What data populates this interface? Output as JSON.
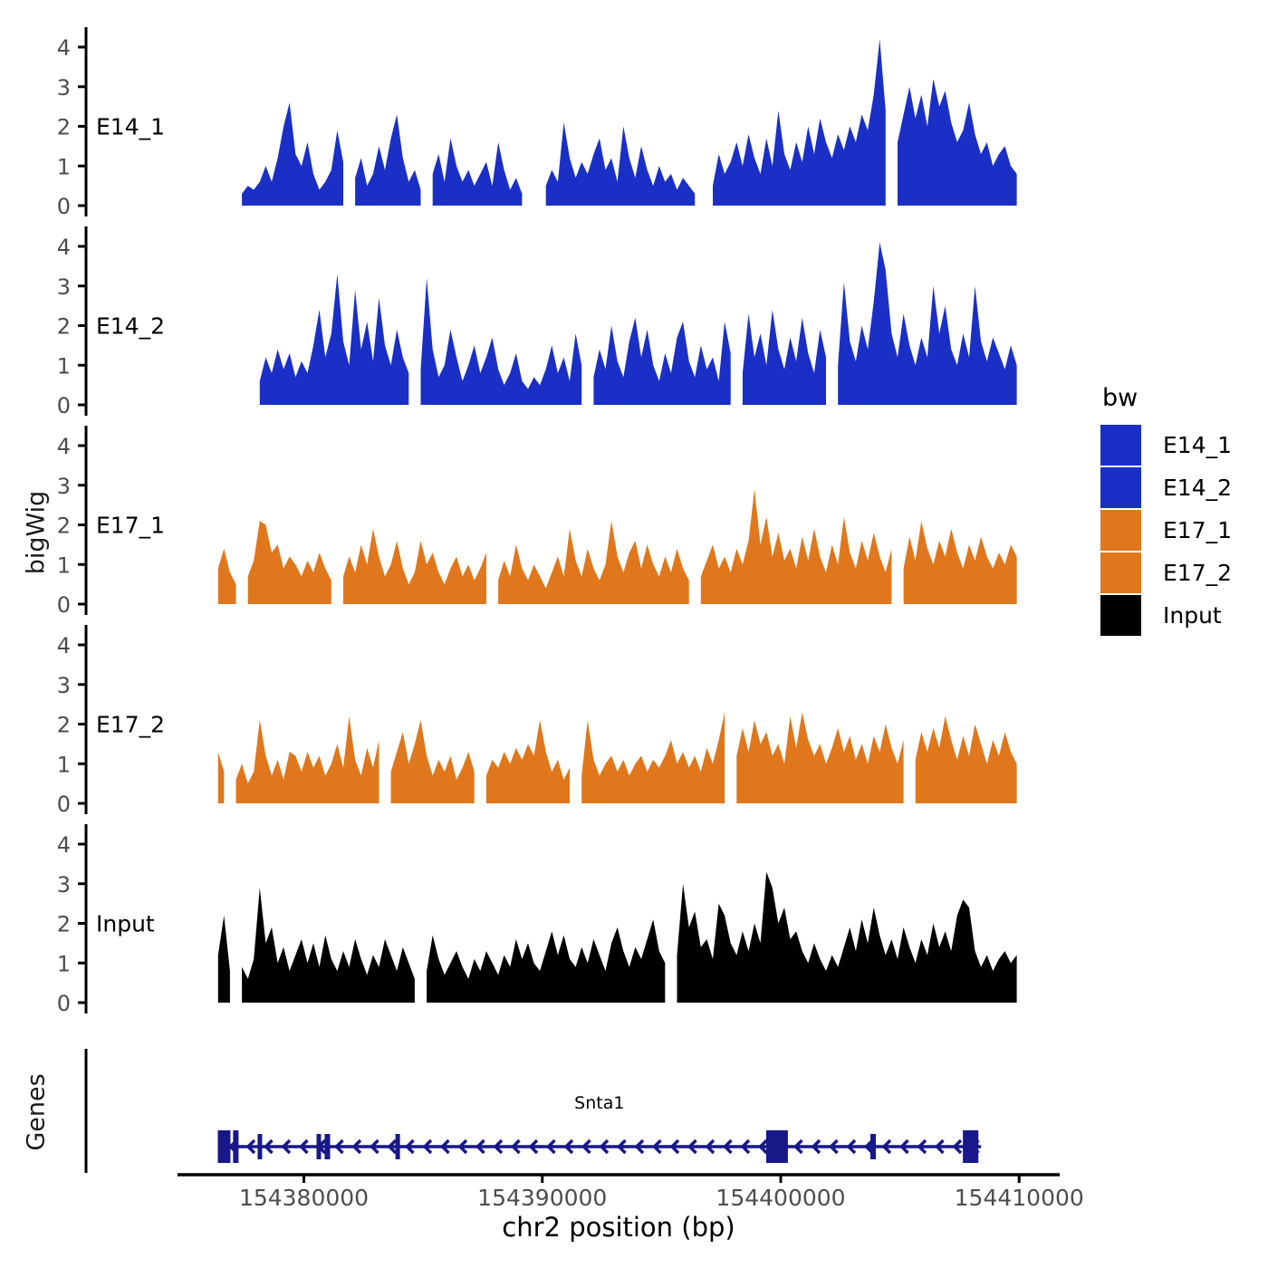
{
  "y_axis_title": "bigWig",
  "genes_axis_title": "Genes",
  "x_axis": {
    "title": "chr2 position (bp)",
    "ticks": [
      154380000,
      154390000,
      154400000,
      154410000
    ],
    "range_bp": [
      154374700,
      154411700
    ]
  },
  "y_axis": {
    "ticks": [
      0,
      1,
      2,
      3,
      4
    ],
    "range": [
      0,
      4.4
    ]
  },
  "legend": {
    "title": "bw",
    "entries": [
      {
        "label": "E14_1",
        "color": "#1A2FC6"
      },
      {
        "label": "E14_2",
        "color": "#1A2FC6"
      },
      {
        "label": "E17_1",
        "color": "#E0771C"
      },
      {
        "label": "E17_2",
        "color": "#E0771C"
      },
      {
        "label": "Input",
        "color": "#000000"
      }
    ]
  },
  "colors": {
    "blue": "#1A2FC6",
    "orange": "#E0771C",
    "black": "#000000",
    "gene_navy": "#181889",
    "tick_label": "#4D4D4D",
    "axis": "#000000"
  },
  "chart_data": {
    "type": "area",
    "title": "",
    "xlabel": "chr2 position (bp)",
    "ylabel": "bigWig",
    "x_start_bp": 154376400,
    "x_step_bp": 250,
    "ylim": [
      0,
      4.4
    ],
    "grid": false,
    "legend_position": "right",
    "series": [
      {
        "name": "E14_1",
        "color": "#1A2FC6",
        "values": [
          0.6,
          null,
          0.7,
          null,
          0.3,
          0.5,
          0.4,
          0.6,
          1.0,
          0.6,
          1.2,
          2.0,
          2.6,
          1.3,
          1.0,
          1.6,
          0.8,
          0.4,
          0.6,
          0.9,
          1.9,
          1.1,
          null,
          0.7,
          1.2,
          0.5,
          0.8,
          1.5,
          0.9,
          1.7,
          2.3,
          1.2,
          0.6,
          0.9,
          0.4,
          null,
          0.8,
          1.3,
          0.6,
          1.7,
          1.0,
          0.6,
          0.9,
          0.5,
          0.8,
          1.1,
          0.5,
          1.6,
          0.9,
          0.4,
          0.7,
          0.3,
          null,
          null,
          null,
          0.5,
          0.9,
          0.6,
          2.1,
          1.2,
          0.7,
          1.1,
          0.8,
          1.3,
          1.7,
          0.9,
          1.2,
          0.6,
          2.0,
          1.2,
          0.7,
          1.5,
          0.9,
          0.5,
          1.0,
          0.6,
          0.8,
          0.4,
          0.7,
          0.5,
          0.3,
          null,
          null,
          0.5,
          1.3,
          0.8,
          1.1,
          1.6,
          1.0,
          1.8,
          1.2,
          0.8,
          1.7,
          1.0,
          2.4,
          1.3,
          0.9,
          1.6,
          1.1,
          2.0,
          1.3,
          2.2,
          1.6,
          1.2,
          1.8,
          1.4,
          2.0,
          1.6,
          2.3,
          1.9,
          2.8,
          4.2,
          2.4,
          null,
          1.6,
          2.3,
          3.0,
          2.2,
          2.8,
          2.0,
          3.2,
          2.5,
          2.9,
          2.1,
          1.6,
          1.9,
          2.6,
          1.8,
          1.3,
          1.6,
          1.0,
          1.3,
          1.5,
          1.0,
          0.8
        ]
      },
      {
        "name": "E14_2",
        "color": "#1A2FC6",
        "values": [
          null,
          null,
          null,
          0.4,
          null,
          null,
          null,
          0.6,
          1.2,
          0.8,
          1.4,
          0.9,
          1.3,
          0.7,
          1.1,
          0.8,
          1.5,
          2.4,
          1.2,
          1.8,
          3.3,
          1.6,
          1.0,
          2.9,
          1.4,
          2.1,
          1.1,
          2.7,
          1.5,
          1.0,
          1.9,
          1.2,
          0.8,
          null,
          0.9,
          3.2,
          1.4,
          0.7,
          1.0,
          1.9,
          1.2,
          0.6,
          1.0,
          1.5,
          0.8,
          1.2,
          1.7,
          0.9,
          0.5,
          0.8,
          1.3,
          0.6,
          0.4,
          0.7,
          0.5,
          0.9,
          1.5,
          0.8,
          1.2,
          0.6,
          1.8,
          1.0,
          null,
          0.7,
          1.4,
          0.9,
          2.0,
          1.1,
          0.7,
          1.6,
          2.2,
          1.2,
          1.9,
          1.0,
          0.6,
          1.3,
          0.8,
          1.7,
          2.1,
          1.1,
          0.7,
          1.5,
          0.9,
          1.2,
          0.6,
          2.1,
          1.3,
          null,
          0.8,
          2.3,
          1.2,
          1.8,
          1.0,
          2.4,
          1.4,
          0.9,
          1.7,
          1.1,
          2.2,
          1.3,
          0.8,
          1.9,
          1.2,
          null,
          1.0,
          3.1,
          1.6,
          1.1,
          2.0,
          1.4,
          2.6,
          4.1,
          3.4,
          1.8,
          1.2,
          2.3,
          1.5,
          1.0,
          1.7,
          1.2,
          3.0,
          1.8,
          2.5,
          1.4,
          1.0,
          1.8,
          1.2,
          3.0,
          1.6,
          1.1,
          1.7,
          1.3,
          0.9,
          1.5,
          1.0
        ]
      },
      {
        "name": "E17_1",
        "color": "#E0771C",
        "values": [
          0.9,
          1.4,
          0.8,
          0.5,
          null,
          0.7,
          1.1,
          2.1,
          2.0,
          1.3,
          1.5,
          0.9,
          1.2,
          1.0,
          0.7,
          1.1,
          0.8,
          1.3,
          0.9,
          0.6,
          null,
          0.7,
          1.2,
          0.8,
          1.5,
          1.0,
          1.9,
          1.2,
          0.7,
          1.0,
          1.6,
          0.9,
          0.5,
          0.8,
          1.6,
          1.0,
          1.3,
          0.8,
          0.5,
          0.9,
          1.2,
          0.7,
          1.0,
          0.6,
          0.9,
          1.3,
          null,
          0.6,
          1.1,
          0.7,
          1.5,
          0.9,
          0.6,
          1.0,
          0.7,
          0.4,
          0.8,
          1.2,
          0.7,
          1.9,
          1.1,
          0.7,
          1.4,
          0.9,
          0.6,
          1.0,
          2.1,
          1.2,
          0.8,
          1.3,
          1.6,
          0.9,
          1.5,
          1.0,
          0.7,
          1.2,
          0.8,
          1.4,
          0.9,
          0.6,
          null,
          0.7,
          1.1,
          1.5,
          0.9,
          1.2,
          0.8,
          1.4,
          1.0,
          1.6,
          2.9,
          1.5,
          2.2,
          1.2,
          1.8,
          1.1,
          1.4,
          0.9,
          1.7,
          1.1,
          1.9,
          1.2,
          0.8,
          1.5,
          1.0,
          2.2,
          1.3,
          0.9,
          1.6,
          1.1,
          1.8,
          1.2,
          0.8,
          1.4,
          null,
          0.9,
          1.7,
          1.1,
          2.1,
          1.4,
          1.0,
          1.6,
          1.2,
          1.9,
          1.3,
          0.9,
          1.5,
          1.1,
          1.7,
          1.2,
          0.9,
          1.3,
          1.0,
          1.5,
          1.2
        ]
      },
      {
        "name": "E17_2",
        "color": "#E0771C",
        "values": [
          1.3,
          0.8,
          null,
          0.6,
          1.0,
          0.5,
          0.8,
          2.1,
          1.2,
          0.7,
          1.1,
          0.6,
          1.3,
          1.2,
          0.8,
          1.3,
          0.9,
          1.2,
          0.7,
          1.0,
          1.5,
          0.9,
          2.2,
          1.1,
          0.7,
          1.4,
          0.9,
          1.6,
          null,
          0.8,
          1.3,
          1.8,
          1.0,
          1.5,
          2.1,
          1.2,
          0.7,
          1.1,
          0.8,
          1.2,
          0.6,
          0.9,
          1.3,
          0.8,
          null,
          0.7,
          1.1,
          0.9,
          1.3,
          1.0,
          1.4,
          1.1,
          1.5,
          1.2,
          2.1,
          1.3,
          0.8,
          1.1,
          0.6,
          0.9,
          null,
          0.7,
          2.1,
          1.1,
          0.7,
          1.0,
          1.2,
          0.8,
          1.1,
          0.7,
          1.0,
          1.2,
          0.8,
          1.1,
          0.9,
          1.2,
          1.6,
          1.0,
          1.3,
          0.9,
          1.2,
          0.8,
          1.4,
          1.0,
          1.6,
          2.3,
          null,
          1.2,
          1.9,
          1.3,
          2.1,
          1.5,
          1.8,
          1.2,
          1.5,
          1.0,
          2.2,
          1.4,
          2.3,
          1.6,
          1.2,
          1.5,
          1.0,
          1.4,
          1.9,
          1.3,
          1.7,
          1.1,
          1.5,
          1.0,
          1.7,
          1.3,
          2.0,
          1.4,
          1.0,
          1.6,
          null,
          1.1,
          1.8,
          1.3,
          1.9,
          1.4,
          2.2,
          1.6,
          1.1,
          1.7,
          1.2,
          2.0,
          1.5,
          1.0,
          1.6,
          1.2,
          1.8,
          1.3,
          1.0
        ]
      },
      {
        "name": "Input",
        "color": "#000000",
        "values": [
          1.2,
          2.2,
          0.8,
          null,
          0.9,
          0.6,
          1.1,
          2.9,
          1.5,
          1.9,
          1.0,
          1.4,
          0.8,
          1.2,
          1.6,
          1.0,
          1.5,
          0.9,
          1.7,
          1.1,
          0.8,
          1.3,
          0.9,
          1.6,
          1.1,
          0.7,
          1.2,
          0.9,
          1.6,
          1.2,
          0.8,
          1.4,
          1.0,
          0.6,
          null,
          0.8,
          1.7,
          1.1,
          0.7,
          1.0,
          1.3,
          0.9,
          0.6,
          1.1,
          0.8,
          1.3,
          1.0,
          0.7,
          1.2,
          0.9,
          1.6,
          1.1,
          1.5,
          1.0,
          0.8,
          1.3,
          1.8,
          1.2,
          1.7,
          1.1,
          0.9,
          1.4,
          1.0,
          1.6,
          1.2,
          0.8,
          1.5,
          1.9,
          1.3,
          0.9,
          1.4,
          1.1,
          1.6,
          2.1,
          1.3,
          1.0,
          null,
          1.2,
          3.0,
          1.9,
          2.3,
          1.4,
          1.6,
          1.1,
          2.5,
          2.2,
          1.5,
          1.2,
          1.8,
          1.3,
          2.0,
          1.5,
          3.3,
          2.9,
          2.0,
          2.4,
          1.6,
          1.8,
          1.3,
          1.0,
          1.5,
          1.1,
          0.8,
          1.2,
          0.9,
          1.4,
          1.9,
          1.3,
          2.1,
          1.5,
          2.4,
          1.7,
          1.2,
          1.6,
          1.1,
          1.9,
          1.4,
          1.0,
          1.6,
          1.2,
          2.0,
          1.4,
          1.8,
          1.3,
          2.2,
          2.6,
          2.4,
          1.3,
          0.9,
          1.2,
          0.8,
          1.1,
          1.3,
          1.0,
          1.2
        ]
      }
    ],
    "gene_track": {
      "gene": "Snta1",
      "chrom": "chr2",
      "strand": "-",
      "start_bp": 154376390,
      "end_bp": 154408400,
      "exons": [
        {
          "start": 154376390,
          "end": 154376920,
          "size": "large"
        },
        {
          "start": 154377030,
          "end": 154377260,
          "size": "large"
        },
        {
          "start": 154378060,
          "end": 154378250,
          "size": "small"
        },
        {
          "start": 154380530,
          "end": 154380720,
          "size": "small"
        },
        {
          "start": 154380870,
          "end": 154381100,
          "size": "small"
        },
        {
          "start": 154383840,
          "end": 154384030,
          "size": "small"
        },
        {
          "start": 154399390,
          "end": 154400300,
          "size": "large"
        },
        {
          "start": 154403760,
          "end": 154403990,
          "size": "small"
        },
        {
          "start": 154407640,
          "end": 154408290,
          "size": "large"
        }
      ]
    }
  }
}
